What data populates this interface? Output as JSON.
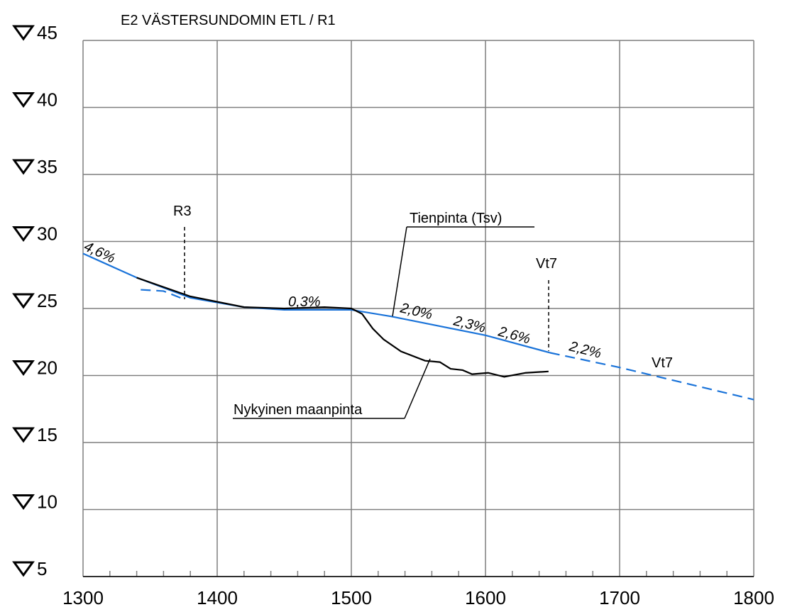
{
  "chart_data": {
    "type": "line",
    "title": "E2 VÄSTERSUNDOMIN ETL  / R1",
    "xlim": [
      1300,
      1800
    ],
    "xticks": [
      1300,
      1400,
      1500,
      1600,
      1700,
      1800
    ],
    "xminorticks": [
      1320,
      1340,
      1360,
      1380,
      1420,
      1440,
      1460,
      1480,
      1520,
      1540,
      1560,
      1580,
      1620,
      1640,
      1660,
      1680,
      1720,
      1740,
      1760,
      1780
    ],
    "ylim": [
      5,
      45
    ],
    "yticks": [
      5,
      10,
      15,
      20,
      25,
      30,
      35,
      40,
      45
    ],
    "grid": true,
    "series": [
      {
        "name": "Tienpinta (Tsv)",
        "color": "#1a73d9",
        "dashed": false,
        "x": [
          1300,
          1340,
          1380,
          1420,
          1450,
          1500,
          1530,
          1560,
          1600,
          1648
        ],
        "values": [
          29.1,
          27.3,
          25.8,
          25.1,
          24.9,
          24.9,
          24.4,
          23.8,
          23.0,
          21.7
        ]
      },
      {
        "color": "#1a73d9",
        "dashed": true,
        "x": [
          1343,
          1360,
          1375,
          null,
          1648,
          1700,
          1800
        ],
        "values": [
          26.4,
          26.3,
          25.7,
          null,
          21.7,
          20.6,
          18.2
        ]
      },
      {
        "name": "Nykyinen maanpinta",
        "color": "#000000",
        "dashed": false,
        "x": [
          1340,
          1380,
          1420,
          1450,
          1480,
          1500,
          1508,
          1516,
          1524,
          1537,
          1555,
          1566,
          1574,
          1583,
          1590,
          1602,
          1614,
          1630,
          1647
        ],
        "values": [
          27.3,
          25.9,
          25.1,
          25.0,
          25.1,
          25.0,
          24.6,
          23.5,
          22.7,
          21.8,
          21.1,
          21.0,
          20.5,
          20.4,
          20.1,
          20.2,
          19.9,
          20.2,
          20.3
        ]
      }
    ],
    "annotations": [
      "R3",
      "Vt7",
      "Vt7",
      "4,6%",
      "0,3%",
      "2,0%",
      "2,3%",
      "2,6%",
      "2,2%"
    ]
  }
}
